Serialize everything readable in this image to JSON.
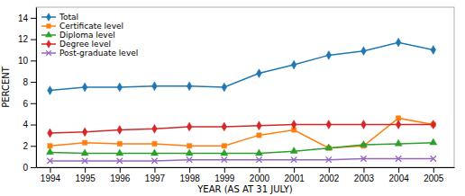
{
  "chart_data": {
    "type": "line",
    "xlabel": "YEAR (AS AT 31 JULY)",
    "ylabel": "PERCENT",
    "x": [
      1994,
      1995,
      1996,
      1997,
      1998,
      1999,
      2000,
      2001,
      2002,
      2003,
      2004,
      2005
    ],
    "series": [
      {
        "name": "Total",
        "marker": "diamond",
        "values": [
          7.2,
          7.5,
          7.5,
          7.6,
          7.6,
          7.5,
          8.8,
          9.6,
          10.5,
          10.9,
          11.7,
          11.0
        ]
      },
      {
        "name": "Certificate level",
        "marker": "square",
        "values": [
          2.0,
          2.3,
          2.2,
          2.2,
          2.0,
          2.0,
          3.0,
          3.5,
          1.8,
          2.0,
          4.6,
          4.0
        ]
      },
      {
        "name": "Diploma level",
        "marker": "triangle",
        "values": [
          1.4,
          1.3,
          1.3,
          1.3,
          1.3,
          1.3,
          1.3,
          1.5,
          1.8,
          2.1,
          2.2,
          2.3
        ]
      },
      {
        "name": "Degree level",
        "marker": "diamond",
        "values": [
          3.2,
          3.3,
          3.5,
          3.6,
          3.8,
          3.8,
          3.9,
          4.0,
          4.0,
          4.0,
          4.0,
          4.0
        ]
      },
      {
        "name": "Post-graduate level",
        "marker": "x",
        "values": [
          0.6,
          0.6,
          0.6,
          0.6,
          0.7,
          0.7,
          0.7,
          0.7,
          0.7,
          0.8,
          0.8,
          0.8
        ]
      }
    ],
    "xlim": [
      1993.6,
      2005.6
    ],
    "xticks": [
      1994,
      1995,
      1996,
      1997,
      1998,
      1999,
      2000,
      2001,
      2002,
      2003,
      2004,
      2005
    ],
    "ylim": [
      0,
      15
    ],
    "yticks": [
      0,
      2,
      4,
      6,
      8,
      10,
      12,
      14
    ],
    "grid": false,
    "legend": "top-left"
  }
}
